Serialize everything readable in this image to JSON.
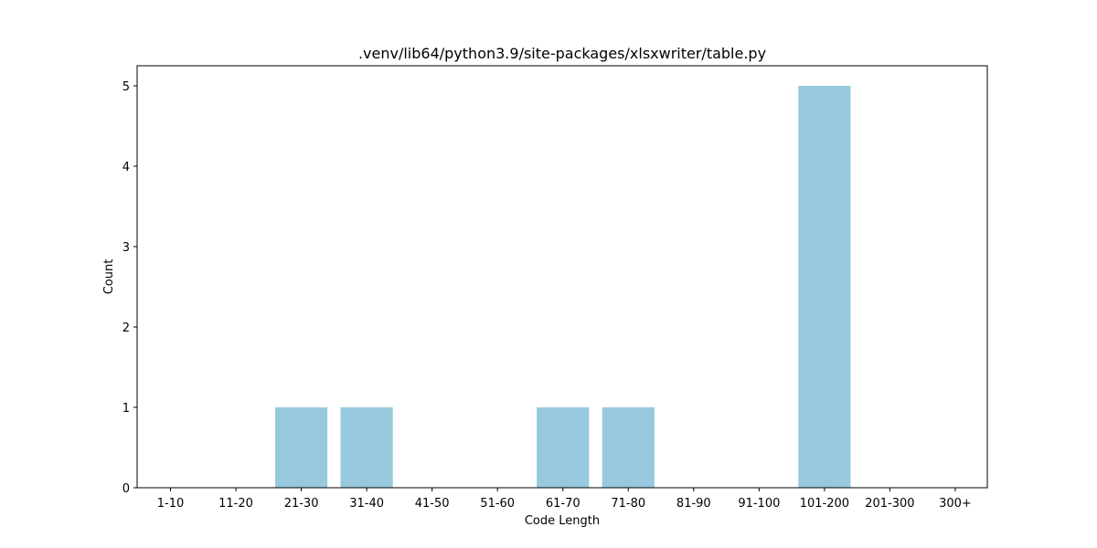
{
  "chart_data": {
    "type": "bar",
    "title": ".venv/lib64/python3.9/site-packages/xlsxwriter/table.py",
    "xlabel": "Code Length",
    "ylabel": "Count",
    "categories": [
      "1-10",
      "11-20",
      "21-30",
      "31-40",
      "41-50",
      "51-60",
      "61-70",
      "71-80",
      "81-90",
      "91-100",
      "101-200",
      "201-300",
      "300+"
    ],
    "values": [
      0,
      0,
      1,
      1,
      0,
      0,
      1,
      1,
      0,
      0,
      5,
      0,
      0
    ],
    "yticks": [
      0,
      1,
      2,
      3,
      4,
      5
    ],
    "ylim": [
      0,
      5.25
    ],
    "grid": false,
    "bar_color": "#96c9dd"
  }
}
